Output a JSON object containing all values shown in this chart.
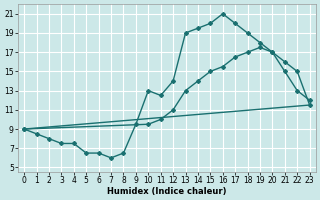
{
  "title": "",
  "xlabel": "Humidex (Indice chaleur)",
  "bg_color": "#cce8e8",
  "grid_color": "#ffffff",
  "line_color": "#1a7070",
  "xlim": [
    -0.5,
    23.5
  ],
  "ylim": [
    4.5,
    22
  ],
  "xticks": [
    0,
    1,
    2,
    3,
    4,
    5,
    6,
    7,
    8,
    9,
    10,
    11,
    12,
    13,
    14,
    15,
    16,
    17,
    18,
    19,
    20,
    21,
    22,
    23
  ],
  "yticks": [
    5,
    7,
    9,
    11,
    13,
    15,
    17,
    19,
    21
  ],
  "line1_x": [
    0,
    1,
    2,
    3,
    4,
    5,
    6,
    7,
    8,
    9,
    10,
    11,
    12,
    13,
    14,
    15,
    16,
    17,
    18,
    19,
    20,
    21,
    22,
    23
  ],
  "line1_y": [
    9,
    8.5,
    8,
    7.5,
    7.5,
    6.5,
    6.5,
    6,
    6.5,
    9.5,
    13,
    12.5,
    14,
    19,
    19.5,
    20,
    21,
    20,
    19,
    18,
    17,
    15,
    13,
    12
  ],
  "line2_x": [
    0,
    10,
    11,
    12,
    13,
    14,
    15,
    16,
    17,
    18,
    19,
    20,
    21,
    22,
    23
  ],
  "line2_y": [
    9,
    9.5,
    10,
    11,
    13,
    14,
    15,
    15.5,
    16.5,
    17,
    17.5,
    17,
    16,
    15,
    11.5
  ],
  "line3_x": [
    0,
    23
  ],
  "line3_y": [
    9,
    11.5
  ],
  "xlabel_fontsize": 6,
  "tick_fontsize": 5.5,
  "linewidth": 1.0,
  "markersize": 2.0
}
